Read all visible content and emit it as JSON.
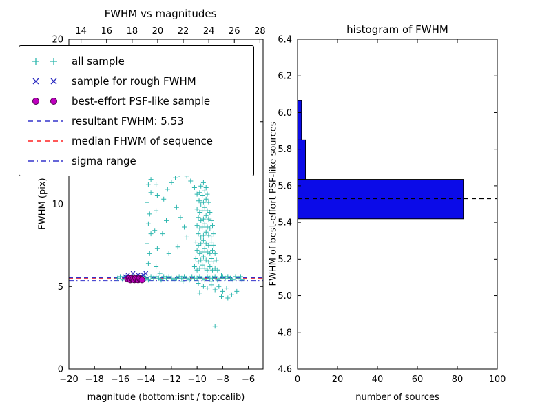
{
  "chart_data": [
    {
      "type": "scatter",
      "title": "FWHM vs magnitudes",
      "xlabel": "magnitude (bottom:isnt / top:calib)",
      "ylabel": "FWHM (pix)",
      "xlim": [
        -20,
        -4.85
      ],
      "top_xlim": [
        13.05,
        28.25
      ],
      "ylim": [
        0,
        20
      ],
      "x_ticks": [
        -20,
        -18,
        -16,
        -14,
        -12,
        -10,
        -8,
        -6
      ],
      "top_x_ticks": [
        14,
        16,
        18,
        20,
        22,
        24,
        26,
        28
      ],
      "y_ticks": [
        0,
        5,
        10,
        15,
        20
      ],
      "legend": [
        {
          "label": "all sample",
          "marker": "plus",
          "color": "#2cb6ae"
        },
        {
          "label": "sample for rough FWHM",
          "marker": "x",
          "color": "#2a2ac0"
        },
        {
          "label": "best-effort PSF-like sample",
          "marker": "circle",
          "color": "#bf00bf"
        },
        {
          "label": "resultant FWHM: 5.53",
          "marker": "dashed",
          "color": "#3333cc"
        },
        {
          "label": "median FHWM of sequence",
          "marker": "dashed",
          "color": "#ff2020"
        },
        {
          "label": "sigma range",
          "marker": "dashdot",
          "color": "#3333cc"
        }
      ],
      "lines": {
        "resultant": 5.53,
        "median": 5.5,
        "sigma": [
          5.36,
          5.7
        ]
      },
      "series": {
        "all_sample": [
          [
            -16.2,
            5.5
          ],
          [
            -16,
            5.6
          ],
          [
            -15.8,
            5.4
          ],
          [
            -15.6,
            5.6
          ],
          [
            -15.4,
            5.5
          ],
          [
            -15.2,
            5.4
          ],
          [
            -15,
            5.6
          ],
          [
            -14.8,
            5.5
          ],
          [
            -14.6,
            5.6
          ],
          [
            -14.4,
            5.4
          ],
          [
            -14.2,
            5.6
          ],
          [
            -14,
            5.5
          ],
          [
            -13.8,
            5.4
          ],
          [
            -13.6,
            5.6
          ],
          [
            -13.4,
            5.5
          ],
          [
            -13.2,
            5.6
          ],
          [
            -13,
            5.5
          ],
          [
            -12.8,
            5.4
          ],
          [
            -12.6,
            5.6
          ],
          [
            -12.4,
            5.5
          ],
          [
            -12.2,
            5.6
          ],
          [
            -12,
            5.5
          ],
          [
            -11.8,
            5.4
          ],
          [
            -11.6,
            5.5
          ],
          [
            -11.4,
            5.6
          ],
          [
            -11.2,
            5.5
          ],
          [
            -11,
            5.6
          ],
          [
            -10.8,
            5.5
          ],
          [
            -10.6,
            5.4
          ],
          [
            -10.4,
            5.6
          ],
          [
            -10.2,
            5.5
          ],
          [
            -10,
            5.5
          ],
          [
            -9.8,
            5.6
          ],
          [
            -9.6,
            5.5
          ],
          [
            -9.4,
            5.4
          ],
          [
            -9.2,
            5.6
          ],
          [
            -9,
            5.5
          ],
          [
            -8.8,
            5.5
          ],
          [
            -8.6,
            5.6
          ],
          [
            -8.4,
            5.4
          ],
          [
            -8.2,
            5.5
          ],
          [
            -8,
            5.6
          ],
          [
            -7.8,
            5.5
          ],
          [
            -7.6,
            5.6
          ],
          [
            -7.4,
            5.5
          ],
          [
            -7.2,
            5.4
          ],
          [
            -7,
            5.6
          ],
          [
            -6.8,
            5.5
          ],
          [
            -6.6,
            5.6
          ],
          [
            -6.5,
            5.4
          ],
          [
            -12.9,
            5.8
          ],
          [
            -11.1,
            5.3
          ],
          [
            -9.9,
            5.2
          ],
          [
            -8.9,
            5.3
          ],
          [
            -8.1,
            5.7
          ],
          [
            -13.8,
            6.4
          ],
          [
            -13.7,
            7.0
          ],
          [
            -13.9,
            7.6
          ],
          [
            -13.6,
            8.2
          ],
          [
            -13.8,
            8.8
          ],
          [
            -13.7,
            9.4
          ],
          [
            -13.9,
            10.1
          ],
          [
            -13.6,
            10.7
          ],
          [
            -13.8,
            11.2
          ],
          [
            -13.6,
            11.5
          ],
          [
            -13.2,
            6.2
          ],
          [
            -13.1,
            7.3
          ],
          [
            -13.3,
            8.4
          ],
          [
            -13.2,
            9.6
          ],
          [
            -13.1,
            10.5
          ],
          [
            -13.2,
            11.2
          ],
          [
            -12.6,
            10.3
          ],
          [
            -12.3,
            10.9
          ],
          [
            -12,
            11.3
          ],
          [
            -11.7,
            11.6
          ],
          [
            -11.4,
            11.8
          ],
          [
            -11.1,
            11.9
          ],
          [
            -10.8,
            11.7
          ],
          [
            -10.5,
            11.4
          ],
          [
            -10.2,
            11.0
          ],
          [
            -10,
            10.6
          ],
          [
            -9.8,
            10.2
          ],
          [
            -11.6,
            9.8
          ],
          [
            -11.3,
            9.2
          ],
          [
            -11,
            8.6
          ],
          [
            -10.8,
            8.0
          ],
          [
            -11.5,
            7.4
          ],
          [
            -12.4,
            9.0
          ],
          [
            -12.7,
            8.2
          ],
          [
            -12.2,
            7.0
          ],
          [
            -9.7,
            11.1
          ],
          [
            -9.5,
            11.3
          ],
          [
            -9.3,
            11.0
          ],
          [
            -9.8,
            10.7
          ],
          [
            -9.6,
            10.5
          ],
          [
            -9.4,
            10.8
          ],
          [
            -9.2,
            10.6
          ],
          [
            -9.9,
            10.2
          ],
          [
            -9.7,
            10.0
          ],
          [
            -9.5,
            10.1
          ],
          [
            -9.3,
            10.3
          ],
          [
            -9.1,
            10.1
          ],
          [
            -10,
            9.7
          ],
          [
            -9.8,
            9.5
          ],
          [
            -9.6,
            9.6
          ],
          [
            -9.4,
            9.8
          ],
          [
            -9.2,
            9.6
          ],
          [
            -9,
            9.5
          ],
          [
            -9.9,
            9.2
          ],
          [
            -9.7,
            9.0
          ],
          [
            -9.5,
            9.1
          ],
          [
            -9.3,
            9.3
          ],
          [
            -9.1,
            9.1
          ],
          [
            -8.9,
            9.0
          ],
          [
            -10,
            8.7
          ],
          [
            -9.8,
            8.5
          ],
          [
            -9.6,
            8.6
          ],
          [
            -9.4,
            8.8
          ],
          [
            -9.2,
            8.6
          ],
          [
            -9,
            8.5
          ],
          [
            -8.8,
            8.7
          ],
          [
            -9.9,
            8.2
          ],
          [
            -9.7,
            8.0
          ],
          [
            -9.5,
            8.1
          ],
          [
            -9.3,
            8.3
          ],
          [
            -9.1,
            8.1
          ],
          [
            -8.9,
            8.0
          ],
          [
            -8.7,
            8.2
          ],
          [
            -10.1,
            7.7
          ],
          [
            -9.9,
            7.5
          ],
          [
            -9.7,
            7.6
          ],
          [
            -9.5,
            7.8
          ],
          [
            -9.3,
            7.6
          ],
          [
            -9.1,
            7.5
          ],
          [
            -8.9,
            7.7
          ],
          [
            -8.7,
            7.5
          ],
          [
            -10,
            7.2
          ],
          [
            -9.8,
            7.0
          ],
          [
            -9.6,
            7.1
          ],
          [
            -9.4,
            7.3
          ],
          [
            -9.2,
            7.1
          ],
          [
            -9,
            7.0
          ],
          [
            -8.8,
            7.2
          ],
          [
            -8.6,
            7.0
          ],
          [
            -10.1,
            6.7
          ],
          [
            -9.9,
            6.5
          ],
          [
            -9.7,
            6.6
          ],
          [
            -9.5,
            6.8
          ],
          [
            -9.3,
            6.6
          ],
          [
            -9.1,
            6.5
          ],
          [
            -8.9,
            6.7
          ],
          [
            -8.7,
            6.5
          ],
          [
            -8.5,
            6.6
          ],
          [
            -10.2,
            6.2
          ],
          [
            -10,
            6.0
          ],
          [
            -9.8,
            6.1
          ],
          [
            -9.6,
            6.3
          ],
          [
            -9.4,
            6.1
          ],
          [
            -9.2,
            6.0
          ],
          [
            -9,
            6.2
          ],
          [
            -8.8,
            6.0
          ],
          [
            -8.6,
            6.1
          ],
          [
            -8.4,
            6.0
          ],
          [
            -9.5,
            5.0
          ],
          [
            -9.2,
            4.9
          ],
          [
            -8.9,
            5.1
          ],
          [
            -8.6,
            4.8
          ],
          [
            -8.3,
            5.0
          ],
          [
            -8,
            4.7
          ],
          [
            -7.7,
            4.9
          ],
          [
            -9.8,
            4.6
          ],
          [
            -8.1,
            4.4
          ],
          [
            -7.6,
            4.3
          ],
          [
            -8.6,
            2.6
          ],
          [
            -7.3,
            4.5
          ],
          [
            -6.9,
            4.7
          ]
        ],
        "rough_fwhm": [
          [
            -15.6,
            5.6
          ],
          [
            -15.4,
            5.7
          ],
          [
            -15.2,
            5.6
          ],
          [
            -15,
            5.8
          ],
          [
            -14.8,
            5.6
          ],
          [
            -14.6,
            5.7
          ],
          [
            -14.4,
            5.6
          ],
          [
            -14.2,
            5.7
          ],
          [
            -14,
            5.8
          ]
        ],
        "psf_like": [
          [
            -15.4,
            5.45
          ],
          [
            -15.3,
            5.5
          ],
          [
            -15.2,
            5.4
          ],
          [
            -15.1,
            5.5
          ],
          [
            -15,
            5.45
          ],
          [
            -14.9,
            5.4
          ],
          [
            -14.8,
            5.5
          ],
          [
            -14.7,
            5.45
          ],
          [
            -14.6,
            5.4
          ],
          [
            -14.5,
            5.5
          ],
          [
            -14.4,
            5.45
          ],
          [
            -14.3,
            5.4
          ]
        ]
      }
    },
    {
      "type": "bar",
      "orientation": "horizontal",
      "title": "histogram of FWHM",
      "xlabel": "number of sources",
      "ylabel": "FWHM of best-effort PSF-like sources",
      "xlim": [
        0,
        100
      ],
      "ylim": [
        4.6,
        6.4
      ],
      "x_ticks": [
        0,
        20,
        40,
        60,
        80,
        100
      ],
      "y_ticks": [
        4.6,
        4.8,
        5.0,
        5.2,
        5.4,
        5.6,
        5.8,
        6.0,
        6.2,
        6.4
      ],
      "bin_edges": [
        5.42,
        5.635,
        5.85,
        6.065
      ],
      "counts": [
        83,
        4,
        2
      ],
      "bar_color": "#0b0be8",
      "dashed_line": 5.53,
      "dashed_line_color": "#000000"
    }
  ]
}
